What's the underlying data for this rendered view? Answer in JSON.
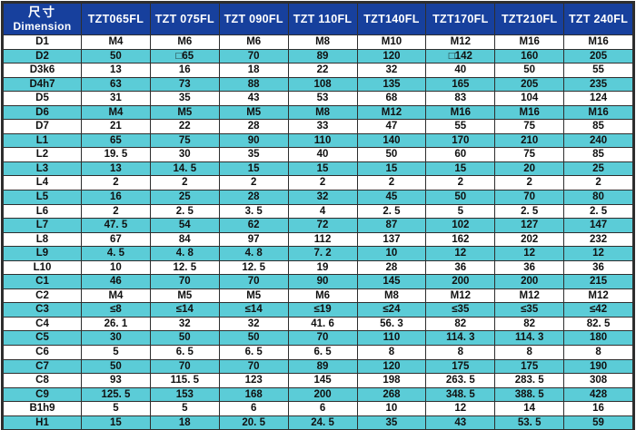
{
  "colors": {
    "header_bg": "#17409d",
    "header_text": "#ffffff",
    "row_bg": "#ffffff",
    "row_alt_bg": "#5bccd7",
    "grid_line": "#2e2e2e",
    "body_text": "#111111"
  },
  "chart_data": {
    "type": "table",
    "corner": {
      "cn": "尺寸",
      "en": "Dimension"
    },
    "columns": [
      "TZT065FL",
      "TZT 075FL",
      "TZT 090FL",
      "TZT 110FL",
      "TZT140FL",
      "TZT170FL",
      "TZT210FL",
      "TZT 240FL"
    ],
    "rows": [
      {
        "label": "D1",
        "values": [
          "M4",
          "M6",
          "M6",
          "M8",
          "M10",
          "M12",
          "M16",
          "M16"
        ]
      },
      {
        "label": "D2",
        "values": [
          "50",
          "□65",
          "70",
          "89",
          "120",
          "□142",
          "160",
          "205"
        ]
      },
      {
        "label": "D3k6",
        "values": [
          "13",
          "16",
          "18",
          "22",
          "32",
          "40",
          "50",
          "55"
        ]
      },
      {
        "label": "D4h7",
        "values": [
          "63",
          "73",
          "88",
          "108",
          "135",
          "165",
          "205",
          "235"
        ]
      },
      {
        "label": "D5",
        "values": [
          "31",
          "35",
          "43",
          "53",
          "68",
          "83",
          "104",
          "124"
        ]
      },
      {
        "label": "D6",
        "values": [
          "M4",
          "M5",
          "M5",
          "M8",
          "M12",
          "M16",
          "M16",
          "M16"
        ]
      },
      {
        "label": "D7",
        "values": [
          "21",
          "22",
          "28",
          "33",
          "47",
          "55",
          "75",
          "85"
        ]
      },
      {
        "label": "L1",
        "values": [
          "65",
          "75",
          "90",
          "110",
          "140",
          "170",
          "210",
          "240"
        ]
      },
      {
        "label": "L2",
        "values": [
          "19. 5",
          "30",
          "35",
          "40",
          "50",
          "60",
          "75",
          "85"
        ]
      },
      {
        "label": "L3",
        "values": [
          "13",
          "14. 5",
          "15",
          "15",
          "15",
          "15",
          "20",
          "25"
        ]
      },
      {
        "label": "L4",
        "values": [
          "2",
          "2",
          "2",
          "2",
          "2",
          "2",
          "2",
          "2"
        ]
      },
      {
        "label": "L5",
        "values": [
          "16",
          "25",
          "28",
          "32",
          "45",
          "50",
          "70",
          "80"
        ]
      },
      {
        "label": "L6",
        "values": [
          "2",
          "2. 5",
          "3. 5",
          "4",
          "2. 5",
          "5",
          "2. 5",
          "2. 5"
        ]
      },
      {
        "label": "L7",
        "values": [
          "47. 5",
          "54",
          "62",
          "72",
          "87",
          "102",
          "127",
          "147"
        ]
      },
      {
        "label": "L8",
        "values": [
          "67",
          "84",
          "97",
          "112",
          "137",
          "162",
          "202",
          "232"
        ]
      },
      {
        "label": "L9",
        "values": [
          "4. 5",
          "4. 8",
          "4. 8",
          "7. 2",
          "10",
          "12",
          "12",
          "12"
        ]
      },
      {
        "label": "L10",
        "values": [
          "10",
          "12. 5",
          "12. 5",
          "19",
          "28",
          "36",
          "36",
          "36"
        ]
      },
      {
        "label": "C1",
        "values": [
          "46",
          "70",
          "70",
          "90",
          "145",
          "200",
          "200",
          "215"
        ]
      },
      {
        "label": "C2",
        "values": [
          "M4",
          "M5",
          "M5",
          "M6",
          "M8",
          "M12",
          "M12",
          "M12"
        ]
      },
      {
        "label": "C3",
        "values": [
          "≤8",
          "≤14",
          "≤14",
          "≤19",
          "≤24",
          "≤35",
          "≤35",
          "≤42"
        ]
      },
      {
        "label": "C4",
        "values": [
          "26. 1",
          "32",
          "32",
          "41. 6",
          "56. 3",
          "82",
          "82",
          "82. 5"
        ]
      },
      {
        "label": "C5",
        "values": [
          "30",
          "50",
          "50",
          "70",
          "110",
          "114. 3",
          "114. 3",
          "180"
        ]
      },
      {
        "label": "C6",
        "values": [
          "5",
          "6. 5",
          "6. 5",
          "6. 5",
          "8",
          "8",
          "8",
          "8"
        ]
      },
      {
        "label": "C7",
        "values": [
          "50",
          "70",
          "70",
          "89",
          "120",
          "175",
          "175",
          "190"
        ]
      },
      {
        "label": "C8",
        "values": [
          "93",
          "115. 5",
          "123",
          "145",
          "198",
          "263. 5",
          "283. 5",
          "308"
        ]
      },
      {
        "label": "C9",
        "values": [
          "125. 5",
          "153",
          "168",
          "200",
          "268",
          "348. 5",
          "388. 5",
          "428"
        ]
      },
      {
        "label": "B1h9",
        "values": [
          "5",
          "5",
          "6",
          "6",
          "10",
          "12",
          "14",
          "16"
        ]
      },
      {
        "label": "H1",
        "values": [
          "15",
          "18",
          "20. 5",
          "24. 5",
          "35",
          "43",
          "53. 5",
          "59"
        ]
      }
    ]
  }
}
